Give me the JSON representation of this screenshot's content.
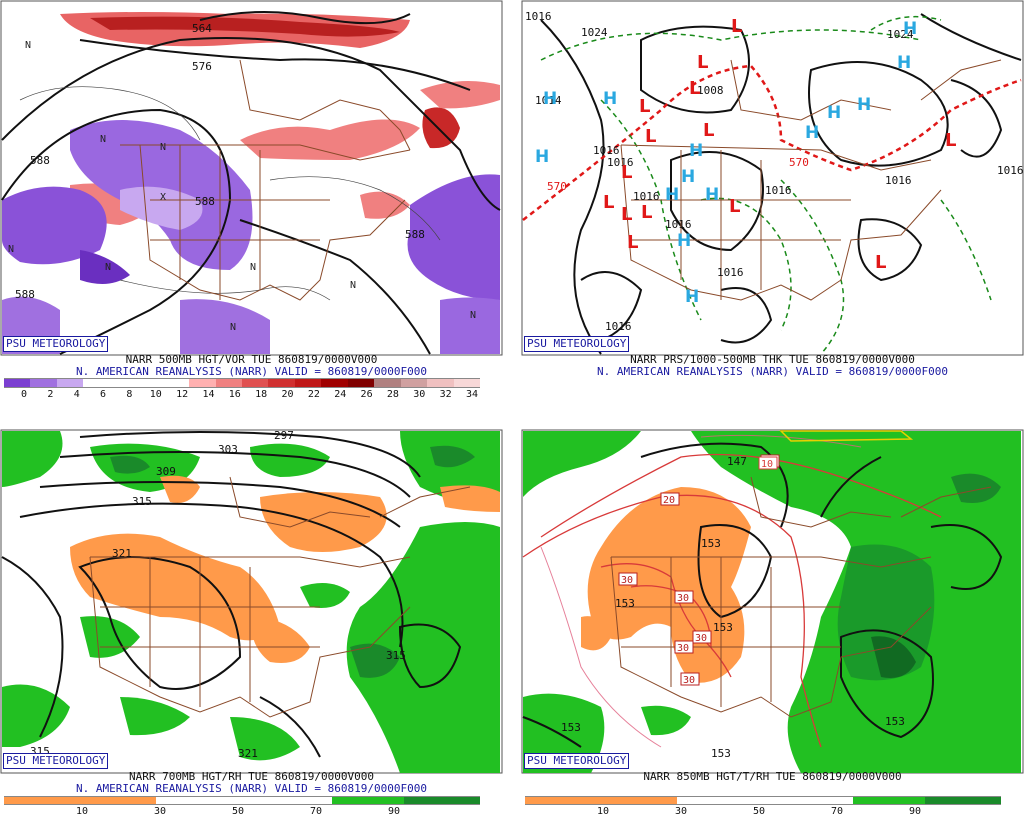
{
  "panels": [
    {
      "id": "vor",
      "badge": "PSU METEOROLOGY",
      "caption_line1": "NARR 500MB HGT/VOR TUE 860819/0000V000",
      "caption_line2": "N. AMERICAN REANALYSIS (NARR) VALID = 860819/0000F000",
      "scale_ticks": [
        "0",
        "2",
        "4",
        "6",
        "8",
        "10",
        "12",
        "14",
        "16",
        "18",
        "20",
        "22",
        "24",
        "26",
        "28",
        "30",
        "32",
        "34"
      ],
      "scale_colors": [
        "#7b3fd1",
        "#a070e0",
        "#c8a8f0",
        "#ffffff",
        "#ffffff",
        "#ffffff",
        "#ffffff",
        "#ffb0b0",
        "#f08080",
        "#e05050",
        "#d03030",
        "#c01818",
        "#a00000",
        "#800000",
        "#b08080",
        "#d0a0a0",
        "#f0c0c0",
        "#f8d8d8"
      ],
      "contour_labels": [
        "564",
        "576",
        "588",
        "588",
        "588",
        "588"
      ],
      "center_marks": [
        "N",
        "N",
        "N",
        "N",
        "N",
        "N",
        "N",
        "N",
        "X",
        "N"
      ]
    },
    {
      "id": "prs",
      "badge": "PSU METEOROLOGY",
      "caption_line1": "NARR PRS/1000-500MB THK TUE 860819/0000V000",
      "caption_line2": "N. AMERICAN REANALYSIS (NARR) VALID = 860819/0000F000",
      "contour_labels": [
        "1016",
        "1024",
        "1014",
        "1008",
        "1016",
        "1016",
        "1016",
        "1016",
        "1016",
        "1016",
        "1016",
        "1016",
        "1024",
        "1016"
      ],
      "thickness_labels": [
        "570",
        "570"
      ],
      "highs": [
        "H",
        "H",
        "H",
        "H",
        "H",
        "H",
        "H",
        "H",
        "H",
        "H",
        "H",
        "H",
        "H",
        "H"
      ],
      "lows": [
        "L",
        "L",
        "L",
        "L",
        "L",
        "L",
        "L",
        "L",
        "L",
        "L",
        "L",
        "L",
        "L",
        "L"
      ]
    },
    {
      "id": "rh700",
      "badge": "PSU METEOROLOGY",
      "caption_line1": "NARR 700MB HGT/RH TUE 860819/0000V000",
      "caption_line2": "N. AMERICAN REANALYSIS (NARR) VALID = 860819/0000F000",
      "scale_ticks": [
        "10",
        "30",
        "50",
        "70",
        "90"
      ],
      "contour_labels": [
        "297",
        "303",
        "309",
        "315",
        "321",
        "315",
        "321",
        "315"
      ]
    },
    {
      "id": "t850",
      "badge": "PSU METEOROLOGY",
      "caption_line1": "NARR 850MB HGT/T/RH TUE 860819/0000V000",
      "caption_line2": "",
      "scale_ticks": [
        "10",
        "30",
        "50",
        "70",
        "90"
      ],
      "contour_labels": [
        "147",
        "153",
        "153",
        "153",
        "153",
        "153",
        "153"
      ],
      "temp_labels": [
        "10",
        "20",
        "30",
        "30",
        "30",
        "30",
        "30",
        "10"
      ]
    }
  ],
  "colors": {
    "vort_purple": "#8a52d8",
    "vort_purple_dark": "#6a2fc0",
    "vort_red": "#e86464",
    "vort_red_dark": "#c01818",
    "high_blue": "#2aa8e0",
    "low_red": "#e01818",
    "thick_dash_red": "#e01818",
    "thick_dash_green": "#1a8a1a",
    "rh_green": "#22c022",
    "rh_green_dark": "#1a8a2a",
    "rh_orange": "#ff9a4a",
    "temp_red": "#d83a3a",
    "border_brown": "#8a4a2a",
    "badge_blue": "#1a1aa0"
  }
}
